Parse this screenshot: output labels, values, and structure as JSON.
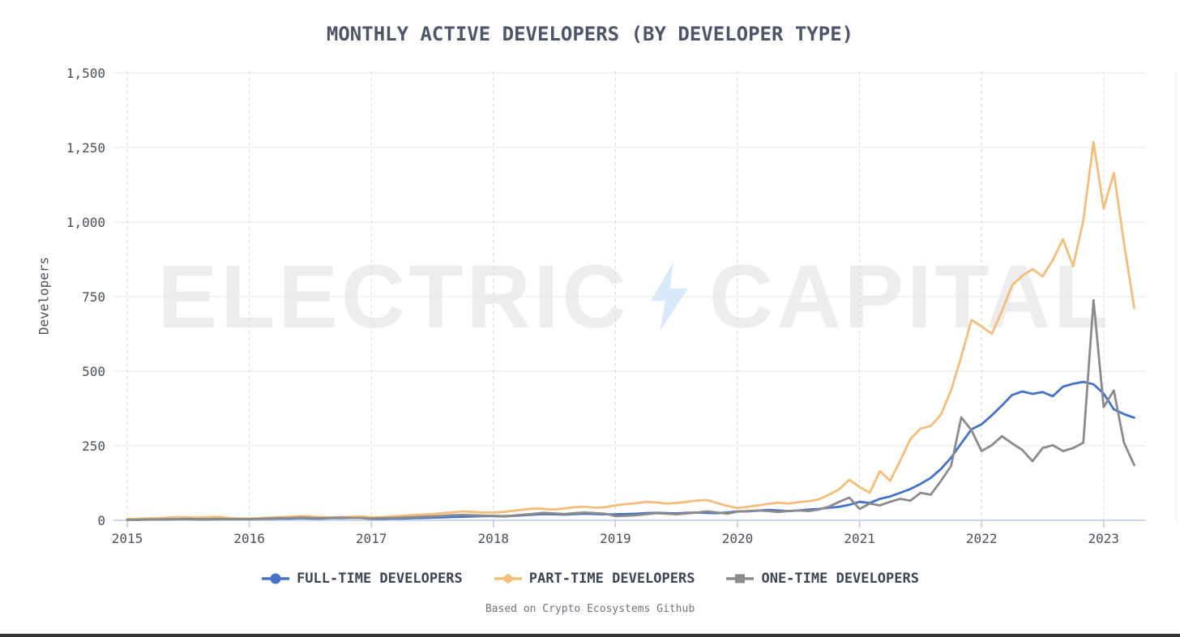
{
  "title": "MONTHLY ACTIVE DEVELOPERS (BY DEVELOPER TYPE)",
  "caption": "Based on Crypto Ecosystems Github",
  "watermark": {
    "left": "ELECTRIC",
    "right": "CAPITAL",
    "bolt_icon": "lightning-bolt",
    "bolt_color": "#d7e9fa",
    "text_color": "#ededee"
  },
  "colors": {
    "full_time": "#4672C6",
    "part_time": "#F3BD7B",
    "one_time": "#8B8B8B",
    "axis": "#b7cde9",
    "grid_h": "#e8e8e9",
    "grid_v": "#d9d9da",
    "tick_text": "#49505c",
    "title_text": "#4d5568"
  },
  "legend": {
    "items": [
      {
        "id": "full-time",
        "label": "FULL-TIME DEVELOPERS",
        "marker": "circle",
        "color": "#4672C6"
      },
      {
        "id": "part-time",
        "label": "PART-TIME DEVELOPERS",
        "marker": "diamond",
        "color": "#F3BD7B"
      },
      {
        "id": "one-time",
        "label": "ONE-TIME DEVELOPERS",
        "marker": "square",
        "color": "#8B8B8B"
      }
    ]
  },
  "chart_data": {
    "type": "line",
    "title": "MONTHLY ACTIVE DEVELOPERS (BY DEVELOPER TYPE)",
    "xlabel": "",
    "ylabel": "Developers",
    "ylim": [
      0,
      1500
    ],
    "y_ticks": [
      "0",
      "250",
      "500",
      "750",
      "1,000",
      "1,250",
      "1,500"
    ],
    "y_tick_values": [
      0,
      250,
      500,
      750,
      1000,
      1250,
      1500
    ],
    "x_ticks": [
      2015,
      2016,
      2017,
      2018,
      2019,
      2020,
      2021,
      2022,
      2023
    ],
    "x_start_year": 2015,
    "points_per_year": 12,
    "x_range_years": [
      2015.0,
      2023.25
    ],
    "grid": {
      "horizontal": "solid",
      "vertical": "dashed"
    },
    "legend_position": "bottom",
    "source": "Based on Crypto Ecosystems Github",
    "series": [
      {
        "id": "full-time",
        "name": "FULL-TIME DEVELOPERS",
        "color": "#4672C6",
        "marker": "circle",
        "values": [
          2,
          2,
          3,
          3,
          3,
          4,
          4,
          3,
          3,
          4,
          4,
          4,
          4,
          5,
          5,
          6,
          6,
          7,
          6,
          6,
          7,
          7,
          8,
          8,
          5,
          5,
          6,
          6,
          7,
          8,
          9,
          10,
          11,
          12,
          13,
          14,
          14,
          13,
          15,
          17,
          19,
          21,
          20,
          19,
          21,
          22,
          21,
          20,
          20,
          21,
          22,
          24,
          25,
          24,
          23,
          25,
          26,
          25,
          24,
          26,
          30,
          30,
          32,
          35,
          33,
          31,
          33,
          36,
          38,
          42,
          45,
          52,
          62,
          58,
          72,
          80,
          92,
          105,
          122,
          142,
          172,
          210,
          258,
          305,
          322,
          352,
          385,
          420,
          432,
          424,
          430,
          416,
          448,
          458,
          464,
          456,
          425,
          372,
          356,
          344
        ]
      },
      {
        "id": "part-time",
        "name": "PART-TIME DEVELOPERS",
        "color": "#F3BD7B",
        "marker": "diamond",
        "values": [
          4,
          5,
          6,
          7,
          9,
          11,
          10,
          9,
          11,
          12,
          8,
          6,
          6,
          7,
          9,
          11,
          12,
          14,
          13,
          11,
          10,
          11,
          12,
          13,
          10,
          11,
          13,
          15,
          17,
          19,
          21,
          24,
          27,
          30,
          28,
          26,
          26,
          28,
          32,
          36,
          40,
          38,
          36,
          40,
          44,
          46,
          42,
          44,
          50,
          54,
          57,
          62,
          60,
          56,
          58,
          62,
          66,
          68,
          58,
          48,
          41,
          45,
          50,
          55,
          59,
          56,
          61,
          64,
          70,
          86,
          104,
          136,
          112,
          92,
          165,
          132,
          200,
          272,
          308,
          316,
          354,
          436,
          548,
          672,
          650,
          625,
          702,
          788,
          820,
          842,
          818,
          872,
          942,
          852,
          1005,
          1268,
          1045,
          1165,
          930,
          712
        ]
      },
      {
        "id": "one-time",
        "name": "ONE-TIME DEVELOPERS",
        "color": "#8B8B8B",
        "marker": "square",
        "values": [
          2,
          2,
          3,
          3,
          4,
          4,
          5,
          4,
          4,
          5,
          4,
          4,
          4,
          5,
          6,
          7,
          8,
          9,
          8,
          7,
          8,
          9,
          8,
          8,
          6,
          7,
          8,
          9,
          10,
          12,
          13,
          15,
          17,
          18,
          17,
          16,
          15,
          14,
          16,
          19,
          22,
          25,
          23,
          21,
          24,
          26,
          24,
          22,
          14,
          15,
          17,
          20,
          24,
          22,
          20,
          23,
          26,
          30,
          26,
          22,
          29,
          31,
          33,
          31,
          28,
          31,
          33,
          31,
          36,
          46,
          62,
          76,
          38,
          56,
          50,
          62,
          72,
          66,
          92,
          86,
          132,
          182,
          345,
          302,
          232,
          252,
          282,
          258,
          236,
          198,
          242,
          252,
          232,
          242,
          260,
          738,
          380,
          435,
          260,
          185
        ]
      }
    ]
  }
}
